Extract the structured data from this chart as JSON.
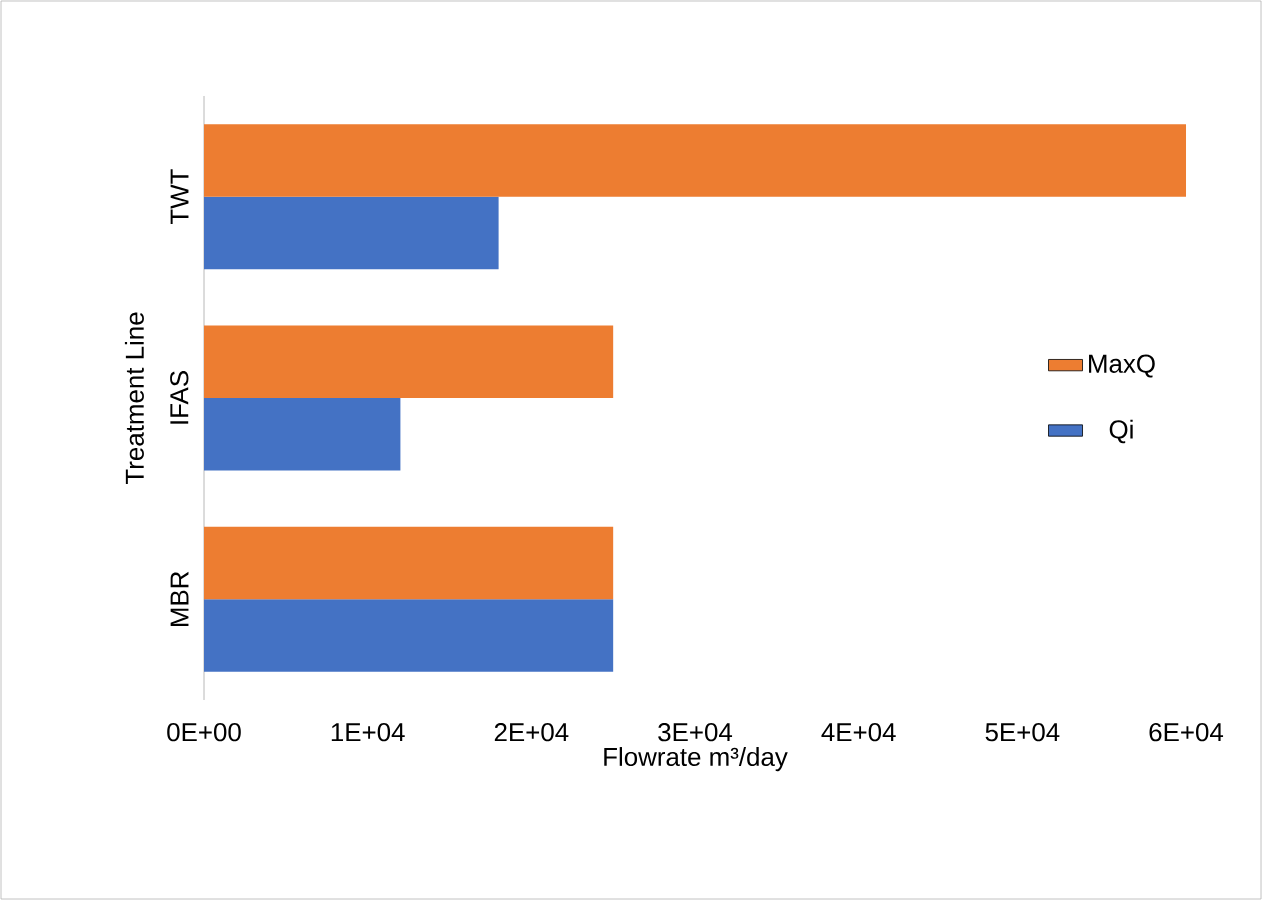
{
  "chart_data": {
    "type": "bar",
    "orientation": "horizontal",
    "xlabel": "Flowrate m³/day",
    "ylabel": "Treatment Line",
    "categories": [
      "TWT",
      "IFAS",
      "MBR"
    ],
    "series": [
      {
        "name": "Qi",
        "color": "#4472c4",
        "values": [
          18000,
          12000,
          25000
        ]
      },
      {
        "name": "MaxQ",
        "color": "#ed7d31",
        "values": [
          60000,
          25000,
          25000
        ]
      }
    ],
    "xlim": [
      0,
      60000
    ],
    "xticks": [
      {
        "value": 0,
        "label": "0E+00"
      },
      {
        "value": 10000,
        "label": "1E+04"
      },
      {
        "value": 20000,
        "label": "2E+04"
      },
      {
        "value": 30000,
        "label": "3E+04"
      },
      {
        "value": 40000,
        "label": "4E+04"
      },
      {
        "value": 50000,
        "label": "5E+04"
      },
      {
        "value": 60000,
        "label": "6E+04"
      }
    ],
    "grid": false,
    "legend": "right"
  }
}
